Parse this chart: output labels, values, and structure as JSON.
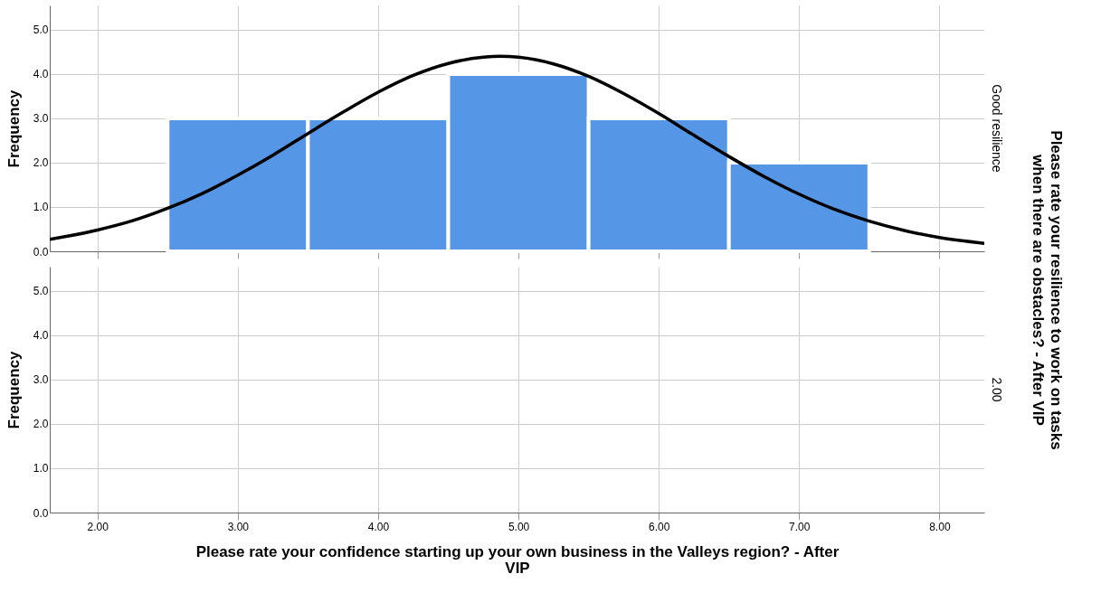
{
  "chart_data": [
    {
      "type": "histogram",
      "ylabel": "Frequency",
      "y2label": "Good resilience",
      "bins": [
        2.5,
        3.5,
        4.5,
        5.5,
        6.5,
        7.5
      ],
      "values": [
        3,
        3,
        4,
        3,
        2
      ],
      "color": "#5596e6",
      "series": [
        {
          "type": "line",
          "color": "#000000",
          "x": [
            1.66,
            2.0,
            2.25,
            2.5,
            2.75,
            3.0,
            3.25,
            3.5,
            3.75,
            4.0,
            4.25,
            4.5,
            4.75,
            4.87,
            5.0,
            5.25,
            5.5,
            5.75,
            6.0,
            6.25,
            6.5,
            6.75,
            7.0,
            7.25,
            7.5,
            7.75,
            8.0,
            8.32
          ],
          "values": [
            0.27,
            0.48,
            0.69,
            0.97,
            1.31,
            1.72,
            2.17,
            2.66,
            3.14,
            3.59,
            3.97,
            4.24,
            4.38,
            4.4,
            4.38,
            4.23,
            3.95,
            3.56,
            3.11,
            2.62,
            2.14,
            1.69,
            1.29,
            0.95,
            0.68,
            0.47,
            0.31,
            0.18
          ]
        }
      ],
      "xlim": [
        1.66,
        8.32
      ],
      "xticks": [
        {
          "value": 2,
          "label": null
        },
        {
          "value": 3,
          "label": null
        },
        {
          "value": 4,
          "label": null
        },
        {
          "value": 5,
          "label": null
        },
        {
          "value": 6,
          "label": null
        },
        {
          "value": 7,
          "label": null
        },
        {
          "value": 8,
          "label": null
        }
      ],
      "ylim": [
        0,
        5.55
      ],
      "yticks": [
        {
          "value": 0,
          "label": "0.0"
        },
        {
          "value": 1,
          "label": "1.0"
        },
        {
          "value": 2,
          "label": "2.0"
        },
        {
          "value": 3,
          "label": "3.0"
        },
        {
          "value": 4,
          "label": "4.0"
        },
        {
          "value": 5,
          "label": "5.0"
        }
      ],
      "grid": true,
      "tick_labels": "y",
      "annotations": [
        "Please rate your resilience to work on tasks when there are obstacles? - After VIP"
      ]
    },
    {
      "type": "histogram",
      "ylabel": "Frequency",
      "y2label": "2.00",
      "xlabel": "Please rate your confidence starting up your own business in the Valleys region? - After VIP",
      "xlim": [
        1.66,
        8.32
      ],
      "xticks": [
        {
          "value": 2,
          "label": "2.00"
        },
        {
          "value": 3,
          "label": "3.00"
        },
        {
          "value": 4,
          "label": "4.00"
        },
        {
          "value": 5,
          "label": "5.00"
        },
        {
          "value": 6,
          "label": "6.00"
        },
        {
          "value": 7,
          "label": "7.00"
        },
        {
          "value": 8,
          "label": "8.00"
        }
      ],
      "ylim": [
        0,
        5.55
      ],
      "yticks": [
        {
          "value": 0,
          "label": "0.0"
        },
        {
          "value": 1,
          "label": "1.0"
        },
        {
          "value": 2,
          "label": "2.0"
        },
        {
          "value": 3,
          "label": "3.0"
        },
        {
          "value": 4,
          "label": "4.0"
        },
        {
          "value": 5,
          "label": "5.0"
        }
      ],
      "grid": true
    }
  ]
}
